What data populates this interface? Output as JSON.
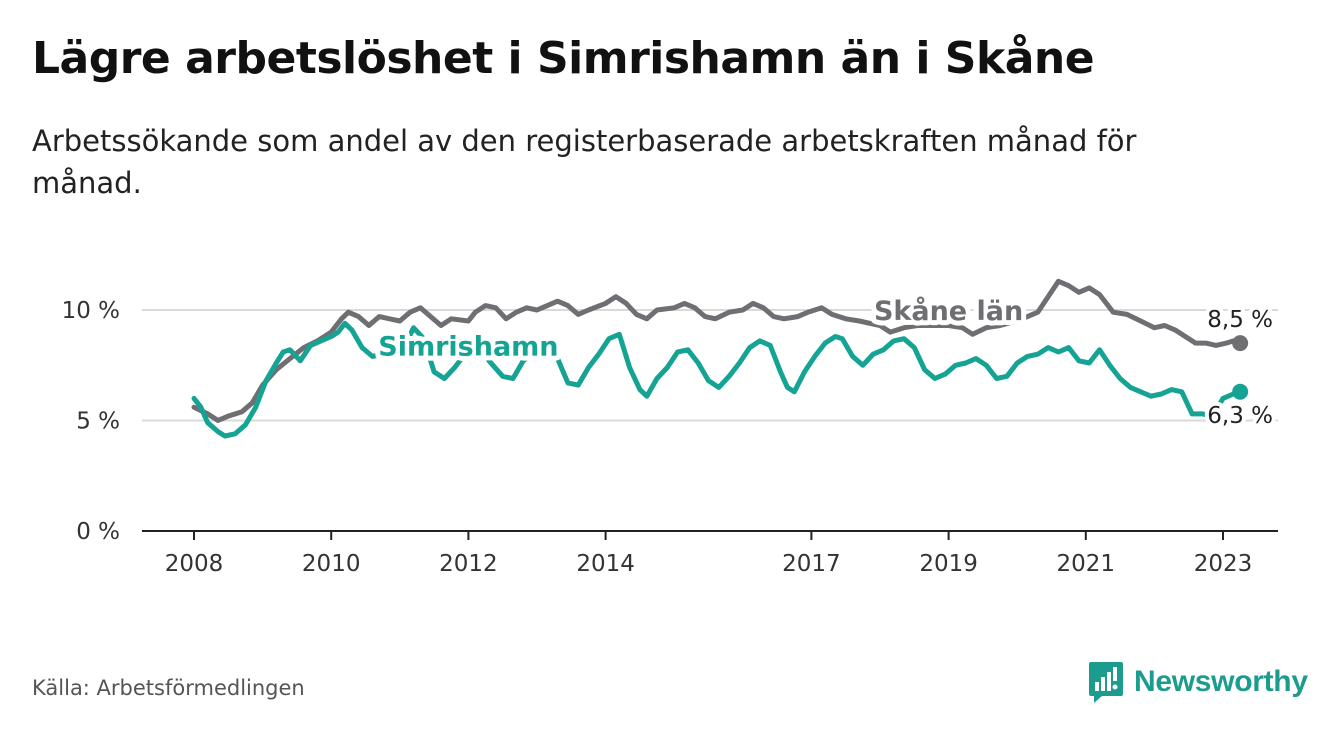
{
  "title": "Lägre arbetslöshet i Simrishamn än i Skåne",
  "subtitle": "Arbetssökande som andel av den registerbaserade arbetskraften månad för månad.",
  "source": "Källa: Arbetsförmedlingen",
  "brand": "Newsworthy",
  "colors": {
    "skane": "#6f6e72",
    "simrishamn": "#15a394",
    "grid": "#d9d9d9",
    "axis": "#222222",
    "brand": "#1c9c8f"
  },
  "chart_data": {
    "type": "line",
    "title": "Lägre arbetslöshet i Simrishamn än i Skåne",
    "xlabel": "",
    "ylabel": "",
    "xlim": [
      2008,
      2023.9
    ],
    "ylim": [
      0,
      10
    ],
    "x_ticks": [
      2008,
      2010,
      2012,
      2014,
      2017,
      2019,
      2021,
      2023
    ],
    "x_tick_labels": [
      "2008",
      "2010",
      "2012",
      "2014",
      "2017",
      "2019",
      "2021",
      "2023"
    ],
    "y_ticks": [
      0,
      5,
      10
    ],
    "y_tick_labels": [
      "0 %",
      "5 %",
      "10 %"
    ],
    "grid": true,
    "series": [
      {
        "name": "Skåne län",
        "label": "Skåne län",
        "end_label": "8,5 %",
        "points": [
          [
            2008.0,
            5.6
          ],
          [
            2008.2,
            5.3
          ],
          [
            2008.35,
            5.0
          ],
          [
            2008.5,
            5.2
          ],
          [
            2008.7,
            5.4
          ],
          [
            2008.85,
            5.8
          ],
          [
            2009.0,
            6.6
          ],
          [
            2009.2,
            7.3
          ],
          [
            2009.4,
            7.8
          ],
          [
            2009.6,
            8.3
          ],
          [
            2009.8,
            8.6
          ],
          [
            2010.0,
            9.0
          ],
          [
            2010.15,
            9.6
          ],
          [
            2010.25,
            9.9
          ],
          [
            2010.4,
            9.7
          ],
          [
            2010.55,
            9.3
          ],
          [
            2010.7,
            9.7
          ],
          [
            2010.85,
            9.6
          ],
          [
            2011.0,
            9.5
          ],
          [
            2011.15,
            9.9
          ],
          [
            2011.3,
            10.1
          ],
          [
            2011.45,
            9.7
          ],
          [
            2011.6,
            9.3
          ],
          [
            2011.75,
            9.6
          ],
          [
            2012.0,
            9.5
          ],
          [
            2012.1,
            9.9
          ],
          [
            2012.25,
            10.2
          ],
          [
            2012.4,
            10.1
          ],
          [
            2012.55,
            9.6
          ],
          [
            2012.7,
            9.9
          ],
          [
            2012.85,
            10.1
          ],
          [
            2013.0,
            10.0
          ],
          [
            2013.15,
            10.2
          ],
          [
            2013.3,
            10.4
          ],
          [
            2013.45,
            10.2
          ],
          [
            2013.6,
            9.8
          ],
          [
            2013.75,
            10.0
          ],
          [
            2014.0,
            10.3
          ],
          [
            2014.15,
            10.6
          ],
          [
            2014.3,
            10.3
          ],
          [
            2014.45,
            9.8
          ],
          [
            2014.6,
            9.6
          ],
          [
            2014.75,
            10.0
          ],
          [
            2015.0,
            10.1
          ],
          [
            2015.15,
            10.3
          ],
          [
            2015.3,
            10.1
          ],
          [
            2015.45,
            9.7
          ],
          [
            2015.6,
            9.6
          ],
          [
            2015.8,
            9.9
          ],
          [
            2016.0,
            10.0
          ],
          [
            2016.15,
            10.3
          ],
          [
            2016.3,
            10.1
          ],
          [
            2016.45,
            9.7
          ],
          [
            2016.6,
            9.6
          ],
          [
            2016.8,
            9.7
          ],
          [
            2016.95,
            9.9
          ],
          [
            2017.15,
            10.1
          ],
          [
            2017.3,
            9.8
          ],
          [
            2017.5,
            9.6
          ],
          [
            2017.7,
            9.5
          ],
          [
            2017.85,
            9.4
          ],
          [
            2018.0,
            9.3
          ],
          [
            2018.15,
            9.0
          ],
          [
            2018.35,
            9.2
          ],
          [
            2018.55,
            9.3
          ],
          [
            2018.75,
            9.3
          ],
          [
            2019.0,
            9.3
          ],
          [
            2019.2,
            9.2
          ],
          [
            2019.35,
            8.9
          ],
          [
            2019.55,
            9.2
          ],
          [
            2019.75,
            9.3
          ],
          [
            2020.0,
            9.5
          ],
          [
            2020.15,
            9.7
          ],
          [
            2020.3,
            9.9
          ],
          [
            2020.45,
            10.6
          ],
          [
            2020.6,
            11.3
          ],
          [
            2020.75,
            11.1
          ],
          [
            2020.9,
            10.8
          ],
          [
            2021.05,
            11.0
          ],
          [
            2021.2,
            10.7
          ],
          [
            2021.4,
            9.9
          ],
          [
            2021.6,
            9.8
          ],
          [
            2021.8,
            9.5
          ],
          [
            2022.0,
            9.2
          ],
          [
            2022.15,
            9.3
          ],
          [
            2022.3,
            9.1
          ],
          [
            2022.45,
            8.8
          ],
          [
            2022.6,
            8.5
          ],
          [
            2022.75,
            8.5
          ],
          [
            2022.9,
            8.4
          ],
          [
            2023.05,
            8.5
          ],
          [
            2023.15,
            8.6
          ],
          [
            2023.25,
            8.5
          ]
        ]
      },
      {
        "name": "Simrishamn",
        "label": "Simrishamn",
        "end_label": "6,3 %",
        "points": [
          [
            2008.0,
            6.0
          ],
          [
            2008.1,
            5.6
          ],
          [
            2008.2,
            4.9
          ],
          [
            2008.35,
            4.5
          ],
          [
            2008.45,
            4.3
          ],
          [
            2008.6,
            4.4
          ],
          [
            2008.75,
            4.8
          ],
          [
            2008.9,
            5.6
          ],
          [
            2009.05,
            6.8
          ],
          [
            2009.2,
            7.6
          ],
          [
            2009.3,
            8.1
          ],
          [
            2009.4,
            8.2
          ],
          [
            2009.55,
            7.7
          ],
          [
            2009.7,
            8.4
          ],
          [
            2009.85,
            8.6
          ],
          [
            2010.0,
            8.8
          ],
          [
            2010.1,
            9.0
          ],
          [
            2010.2,
            9.4
          ],
          [
            2010.3,
            9.1
          ],
          [
            2010.45,
            8.3
          ],
          [
            2010.6,
            7.9
          ],
          [
            2010.75,
            8.0
          ],
          [
            2010.9,
            7.9
          ],
          [
            2011.05,
            8.2
          ],
          [
            2011.2,
            9.2
          ],
          [
            2011.35,
            8.7
          ],
          [
            2011.5,
            7.2
          ],
          [
            2011.65,
            6.9
          ],
          [
            2011.8,
            7.4
          ],
          [
            2011.9,
            7.8
          ],
          [
            2012.0,
            8.6
          ],
          [
            2012.15,
            8.8
          ],
          [
            2012.3,
            7.7
          ],
          [
            2012.5,
            7.0
          ],
          [
            2012.65,
            6.9
          ],
          [
            2012.8,
            7.7
          ],
          [
            2013.0,
            8.2
          ],
          [
            2013.15,
            8.6
          ],
          [
            2013.3,
            7.8
          ],
          [
            2013.45,
            6.7
          ],
          [
            2013.6,
            6.6
          ],
          [
            2013.75,
            7.4
          ],
          [
            2013.9,
            8.0
          ],
          [
            2014.05,
            8.7
          ],
          [
            2014.2,
            8.9
          ],
          [
            2014.35,
            7.4
          ],
          [
            2014.5,
            6.4
          ],
          [
            2014.6,
            6.1
          ],
          [
            2014.75,
            6.9
          ],
          [
            2014.9,
            7.4
          ],
          [
            2015.05,
            8.1
          ],
          [
            2015.2,
            8.2
          ],
          [
            2015.35,
            7.6
          ],
          [
            2015.5,
            6.8
          ],
          [
            2015.65,
            6.5
          ],
          [
            2015.8,
            7.0
          ],
          [
            2015.95,
            7.6
          ],
          [
            2016.1,
            8.3
          ],
          [
            2016.25,
            8.6
          ],
          [
            2016.4,
            8.4
          ],
          [
            2016.55,
            7.2
          ],
          [
            2016.65,
            6.5
          ],
          [
            2016.75,
            6.3
          ],
          [
            2016.9,
            7.2
          ],
          [
            2017.05,
            7.9
          ],
          [
            2017.2,
            8.5
          ],
          [
            2017.35,
            8.8
          ],
          [
            2017.45,
            8.7
          ],
          [
            2017.6,
            7.9
          ],
          [
            2017.75,
            7.5
          ],
          [
            2017.9,
            8.0
          ],
          [
            2018.05,
            8.2
          ],
          [
            2018.2,
            8.6
          ],
          [
            2018.35,
            8.7
          ],
          [
            2018.5,
            8.3
          ],
          [
            2018.65,
            7.3
          ],
          [
            2018.8,
            6.9
          ],
          [
            2018.95,
            7.1
          ],
          [
            2019.1,
            7.5
          ],
          [
            2019.25,
            7.6
          ],
          [
            2019.4,
            7.8
          ],
          [
            2019.55,
            7.5
          ],
          [
            2019.7,
            6.9
          ],
          [
            2019.85,
            7.0
          ],
          [
            2020.0,
            7.6
          ],
          [
            2020.15,
            7.9
          ],
          [
            2020.3,
            8.0
          ],
          [
            2020.45,
            8.3
          ],
          [
            2020.6,
            8.1
          ],
          [
            2020.75,
            8.3
          ],
          [
            2020.9,
            7.7
          ],
          [
            2021.05,
            7.6
          ],
          [
            2021.2,
            8.2
          ],
          [
            2021.35,
            7.5
          ],
          [
            2021.5,
            6.9
          ],
          [
            2021.65,
            6.5
          ],
          [
            2021.8,
            6.3
          ],
          [
            2021.95,
            6.1
          ],
          [
            2022.1,
            6.2
          ],
          [
            2022.25,
            6.4
          ],
          [
            2022.4,
            6.3
          ],
          [
            2022.55,
            5.3
          ],
          [
            2022.7,
            5.3
          ],
          [
            2022.85,
            5.2
          ],
          [
            2023.0,
            6.0
          ],
          [
            2023.15,
            6.2
          ],
          [
            2023.25,
            6.3
          ]
        ]
      }
    ]
  }
}
